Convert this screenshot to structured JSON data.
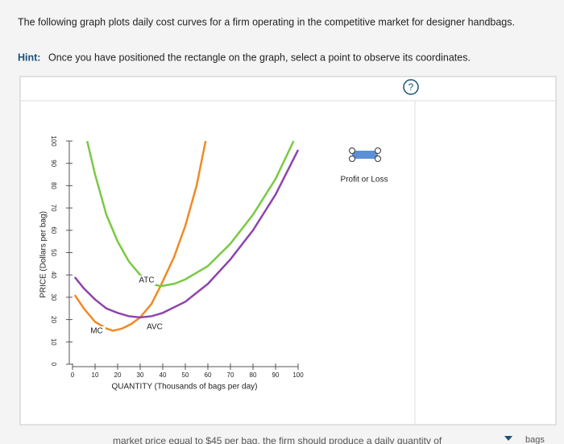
{
  "question": "The following graph plots daily cost curves for a firm operating in the competitive market for designer handbags.",
  "hint_label": "Hint:",
  "hint": "Once you have positioned the rectangle on the graph, select a point to observe its coordinates.",
  "help": "?",
  "legend_label": "Profit or Loss",
  "bottom_text": "market price equal to $45 per bag, the firm should produce a daily quantity of",
  "bottom_unit": "bags",
  "chart_data": {
    "type": "line",
    "x_label": "QUANTITY (Thousands of bags per day)",
    "y_label": "PRICE (Dollars per bag)",
    "xlim": [
      0,
      100
    ],
    "ylim": [
      0,
      100
    ],
    "xticks": [
      0,
      10,
      20,
      30,
      40,
      50,
      60,
      70,
      80,
      90,
      100
    ],
    "yticks": [
      0,
      10,
      20,
      30,
      40,
      50,
      60,
      70,
      80,
      90,
      100
    ],
    "grid": false,
    "series": [
      {
        "name": "MC",
        "color": "#f08a24",
        "x": [
          1,
          5,
          10,
          15,
          18,
          22,
          26,
          30,
          35,
          39,
          45,
          50,
          55,
          59
        ],
        "values": [
          31,
          25,
          19,
          16,
          15,
          16,
          18,
          21,
          27,
          35,
          48,
          62,
          80,
          100
        ]
      },
      {
        "name": "ATC",
        "color": "#7ac943",
        "x": [
          6.5,
          10,
          15,
          20,
          25,
          30,
          35,
          39,
          45,
          50,
          60,
          70,
          80,
          90,
          98
        ],
        "values": [
          100,
          85,
          67,
          55,
          46,
          40,
          36,
          35,
          36,
          38,
          44,
          54,
          67,
          83,
          100
        ]
      },
      {
        "name": "AVC",
        "color": "#8e44ad",
        "x": [
          1,
          5,
          10,
          15,
          20,
          25,
          30,
          35,
          40,
          50,
          60,
          70,
          80,
          90,
          100
        ],
        "values": [
          39,
          34,
          29,
          25,
          23,
          21.5,
          21,
          21.5,
          23,
          28,
          36,
          47,
          60,
          76,
          96
        ]
      }
    ]
  }
}
